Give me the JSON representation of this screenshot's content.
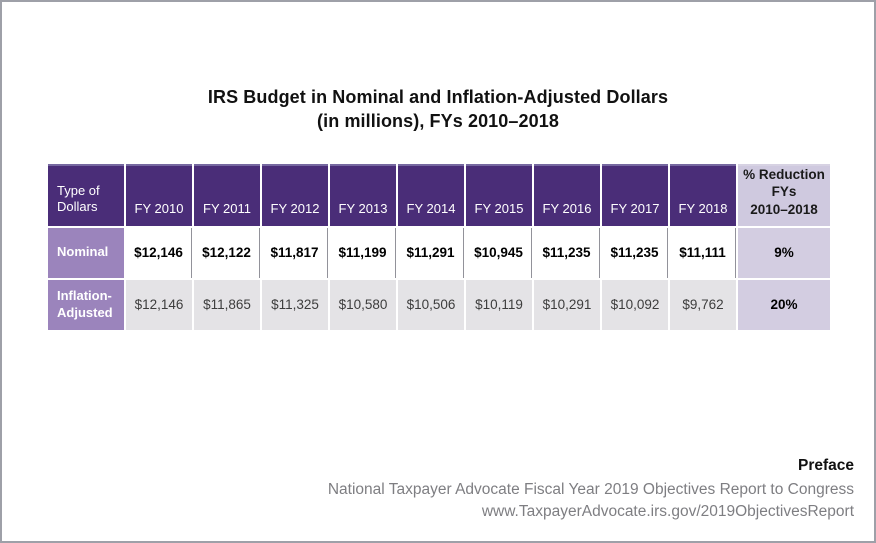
{
  "title": {
    "line1": "IRS Budget in Nominal and Inflation-Adjusted Dollars",
    "line2": "(in millions), FYs 2010–2018"
  },
  "table": {
    "corner_header": "Type of Dollars",
    "year_headers": [
      "FY 2010",
      "FY 2011",
      "FY 2012",
      "FY 2013",
      "FY 2014",
      "FY 2015",
      "FY 2016",
      "FY 2017",
      "FY 2018"
    ],
    "reduction_header_lines": [
      "% Reduction",
      "FYs",
      "2010–2018"
    ],
    "rows": [
      {
        "label": "Nominal",
        "values": [
          "$12,146",
          "$12,122",
          "$11,817",
          "$11,199",
          "$11,291",
          "$10,945",
          "$11,235",
          "$11,235",
          "$11,111"
        ],
        "reduction": "9%"
      },
      {
        "label": "Inflation-Adjusted",
        "values": [
          "$12,146",
          "$11,865",
          "$11,325",
          "$10,580",
          "$10,506",
          "$10,119",
          "$10,291",
          "$10,092",
          "$9,762"
        ],
        "reduction": "20%"
      }
    ]
  },
  "footer": {
    "preface": "Preface",
    "source": "National Taxpayer Advocate Fiscal Year 2019 Objectives Report to Congress",
    "url": "www.TaxpayerAdvocate.irs.gov/2019ObjectivesReport"
  },
  "colors": {
    "header_purple": "#4a2d78",
    "label_purple": "#9b84bc",
    "lavender_header": "#cfc9df",
    "lavender_cell": "#d3cde1",
    "gray_row": "#e4e3e6",
    "footer_gray": "#7e7e82"
  },
  "chart_data": {
    "type": "table",
    "title": "IRS Budget in Nominal and Inflation-Adjusted Dollars (in millions), FYs 2010–2018",
    "columns": [
      "Type of Dollars",
      "FY 2010",
      "FY 2011",
      "FY 2012",
      "FY 2013",
      "FY 2014",
      "FY 2015",
      "FY 2016",
      "FY 2017",
      "FY 2018",
      "% Reduction FYs 2010–2018"
    ],
    "rows": [
      [
        "Nominal",
        12146,
        12122,
        11817,
        11199,
        11291,
        10945,
        11235,
        11235,
        11111,
        "9%"
      ],
      [
        "Inflation-Adjusted",
        12146,
        11865,
        11325,
        10580,
        10506,
        10119,
        10291,
        10092,
        9762,
        "20%"
      ]
    ],
    "source": "National Taxpayer Advocate Fiscal Year 2019 Objectives Report to Congress, www.TaxpayerAdvocate.irs.gov/2019ObjectivesReport"
  }
}
